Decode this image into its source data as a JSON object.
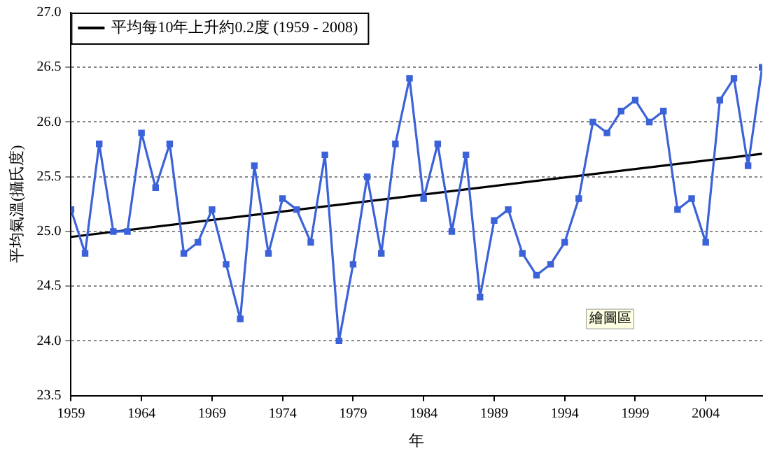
{
  "chart_data": {
    "type": "line",
    "xlabel": "年",
    "ylabel": "平均氣溫(攝氏度)",
    "x": [
      1959,
      1960,
      1961,
      1962,
      1963,
      1964,
      1965,
      1966,
      1967,
      1968,
      1969,
      1970,
      1971,
      1972,
      1973,
      1974,
      1975,
      1976,
      1977,
      1978,
      1979,
      1980,
      1981,
      1982,
      1983,
      1984,
      1985,
      1986,
      1987,
      1988,
      1989,
      1990,
      1991,
      1992,
      1993,
      1994,
      1995,
      1996,
      1997,
      1998,
      1999,
      2000,
      2001,
      2002,
      2003,
      2004,
      2005,
      2006,
      2007,
      2008
    ],
    "series": [
      {
        "color": "#3b62d8",
        "marker": "square",
        "values": [
          25.2,
          24.8,
          25.8,
          25.0,
          25.0,
          25.9,
          25.4,
          25.8,
          24.8,
          24.9,
          25.2,
          24.7,
          24.2,
          25.6,
          24.8,
          25.3,
          25.2,
          24.9,
          25.7,
          24.0,
          24.7,
          25.5,
          24.8,
          25.8,
          26.4,
          25.3,
          25.8,
          25.0,
          25.7,
          24.4,
          25.1,
          25.2,
          24.8,
          24.6,
          24.7,
          24.9,
          25.3,
          26.0,
          25.9,
          26.1,
          26.2,
          26.0,
          26.1,
          25.2,
          25.3,
          24.9,
          26.2,
          26.4,
          25.6,
          26.5
        ]
      },
      {
        "name": "平均每10年上升約0.2度 (1959 - 2008)",
        "color": "#000000",
        "marker": "none",
        "x": [
          1959,
          2008
        ],
        "values": [
          24.95,
          25.71
        ]
      }
    ],
    "xlim": [
      1959,
      2008
    ],
    "xticks": [
      1959,
      1964,
      1969,
      1974,
      1979,
      1984,
      1989,
      1994,
      1999,
      2004
    ],
    "ylim": [
      23.5,
      27.0
    ],
    "yticks": [
      {
        "value": 23.5,
        "label": "23.5"
      },
      {
        "value": 24,
        "label": "24.0"
      },
      {
        "value": 24.5,
        "label": "24.5"
      },
      {
        "value": 25,
        "label": "25.0"
      },
      {
        "value": 25.5,
        "label": "25.5"
      },
      {
        "value": 26,
        "label": "26.0"
      },
      {
        "value": 26.5,
        "label": "26.5"
      },
      {
        "value": 27,
        "label": "27.0"
      }
    ],
    "grid": "y",
    "legend": "top left",
    "line_style": "solid",
    "annotations": [
      "繪圖區"
    ]
  }
}
